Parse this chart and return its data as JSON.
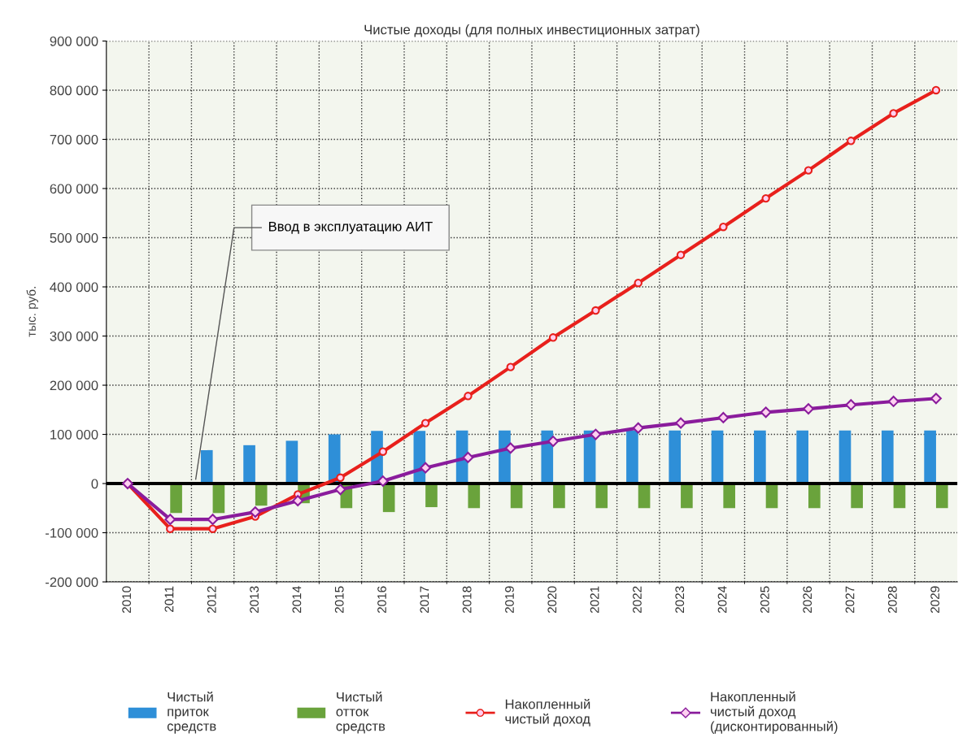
{
  "chart_data": {
    "type": "bar",
    "title": "Чистые доходы (для полных инвестиционных затрат)",
    "ylabel": "тыс. руб.",
    "categories": [
      "2010",
      "2011",
      "2012",
      "2013",
      "2014",
      "2015",
      "2016",
      "2017",
      "2018",
      "2019",
      "2020",
      "2021",
      "2022",
      "2023",
      "2024",
      "2025",
      "2026",
      "2027",
      "2028",
      "2029"
    ],
    "series": [
      {
        "name": "Чистый\nприток\nсредств",
        "color": "#2e8fd8",
        "values": [
          0,
          0,
          68000,
          78000,
          87000,
          100000,
          107000,
          107000,
          108000,
          108000,
          108000,
          108000,
          108000,
          108000,
          108000,
          108000,
          108000,
          108000,
          108000,
          108000
        ]
      },
      {
        "name": "Чистый\nотток\nсредств",
        "color": "#6aa33c",
        "values": [
          0,
          -60000,
          -60000,
          -45000,
          -40000,
          -50000,
          -58000,
          -48000,
          -50000,
          -50000,
          -50000,
          -50000,
          -50000,
          -50000,
          -50000,
          -50000,
          -50000,
          -50000,
          -50000,
          -50000
        ]
      },
      {
        "name": "Накопленный\nчистый доход",
        "type": "line",
        "color": "#e8201c",
        "marker": "circle",
        "values": [
          0,
          -92000,
          -92000,
          -67000,
          -22000,
          12000,
          65000,
          123000,
          178000,
          237000,
          297000,
          352000,
          408000,
          465000,
          522000,
          580000,
          637000,
          697000,
          753000,
          800000
        ]
      },
      {
        "name": "Накопленный\nчистый доход\n(дисконтированный)",
        "type": "line",
        "color": "#8a1c9c",
        "marker": "diamond",
        "values": [
          0,
          -73000,
          -73000,
          -58000,
          -35000,
          -12000,
          5000,
          32000,
          53000,
          72000,
          86000,
          100000,
          113000,
          123000,
          134000,
          145000,
          152000,
          160000,
          167000,
          173000
        ]
      }
    ],
    "ylim": [
      -200000,
      900000
    ],
    "yticks": [
      {
        "value": -200000,
        "label": "-200 000"
      },
      {
        "value": -100000,
        "label": "-100 000"
      },
      {
        "value": 0,
        "label": "0"
      },
      {
        "value": 100000,
        "label": "100 000"
      },
      {
        "value": 200000,
        "label": "200 000"
      },
      {
        "value": 300000,
        "label": "300 000"
      },
      {
        "value": 400000,
        "label": "400 000"
      },
      {
        "value": 500000,
        "label": "500 000"
      },
      {
        "value": 600000,
        "label": "600 000"
      },
      {
        "value": 700000,
        "label": "700 000"
      },
      {
        "value": 800000,
        "label": "800 000"
      },
      {
        "value": 900000,
        "label": "900 000"
      }
    ],
    "grid": true,
    "legend": "bottom",
    "annotations": [
      "Ввод в эксплуатацию АИТ"
    ]
  }
}
